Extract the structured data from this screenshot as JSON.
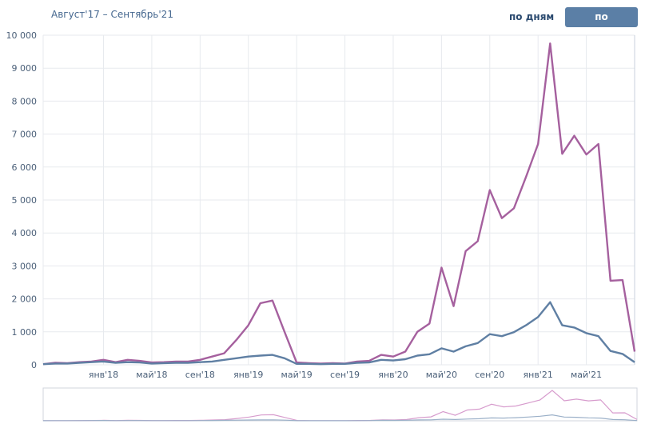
{
  "header": {
    "range": "Август'17 – Сентябрь'21",
    "btn_days": "по дням",
    "btn_months": "по месяцам"
  },
  "colors": {
    "series_purple": "#a5609e",
    "series_blue": "#5f7fa3",
    "grid": "#e7eaee",
    "active_button": "#5b7fa6"
  },
  "chart_data": {
    "type": "line",
    "title": "",
    "xlabel": "",
    "ylabel": "",
    "ylim": [
      0,
      10000
    ],
    "yticks": [
      0,
      1000,
      2000,
      3000,
      4000,
      5000,
      6000,
      7000,
      8000,
      9000,
      10000
    ],
    "ytick_labels": [
      "0",
      "1 000",
      "2 000",
      "3 000",
      "4 000",
      "5 000",
      "6 000",
      "7 000",
      "8 000",
      "9 000",
      "10 000"
    ],
    "x_labels": [
      {
        "index": 5,
        "label": "янв'18"
      },
      {
        "index": 9,
        "label": "май'18"
      },
      {
        "index": 13,
        "label": "сен'18"
      },
      {
        "index": 17,
        "label": "янв'19"
      },
      {
        "index": 21,
        "label": "май'19"
      },
      {
        "index": 25,
        "label": "сен'19"
      },
      {
        "index": 29,
        "label": "янв'20"
      },
      {
        "index": 33,
        "label": "май'20"
      },
      {
        "index": 37,
        "label": "сен'20"
      },
      {
        "index": 41,
        "label": "янв'21"
      },
      {
        "index": 45,
        "label": "май'21"
      }
    ],
    "series": [
      {
        "name": "purple",
        "values": [
          20,
          60,
          50,
          80,
          100,
          150,
          80,
          150,
          120,
          70,
          80,
          100,
          100,
          150,
          250,
          350,
          750,
          1200,
          1870,
          1950,
          1000,
          70,
          50,
          40,
          50,
          40,
          100,
          120,
          300,
          250,
          400,
          1000,
          1250,
          2950,
          1780,
          3450,
          3750,
          5300,
          4450,
          4750,
          5700,
          6700,
          9750,
          6400,
          6950,
          6380,
          6700,
          2550,
          2570,
          400
        ]
      },
      {
        "name": "blue",
        "values": [
          20,
          40,
          40,
          60,
          80,
          100,
          60,
          80,
          70,
          40,
          50,
          60,
          60,
          80,
          100,
          150,
          200,
          250,
          280,
          300,
          200,
          30,
          30,
          20,
          30,
          30,
          60,
          70,
          150,
          130,
          170,
          280,
          320,
          500,
          400,
          560,
          660,
          930,
          870,
          990,
          1200,
          1450,
          1900,
          1200,
          1130,
          960,
          870,
          420,
          330,
          80
        ]
      }
    ]
  }
}
